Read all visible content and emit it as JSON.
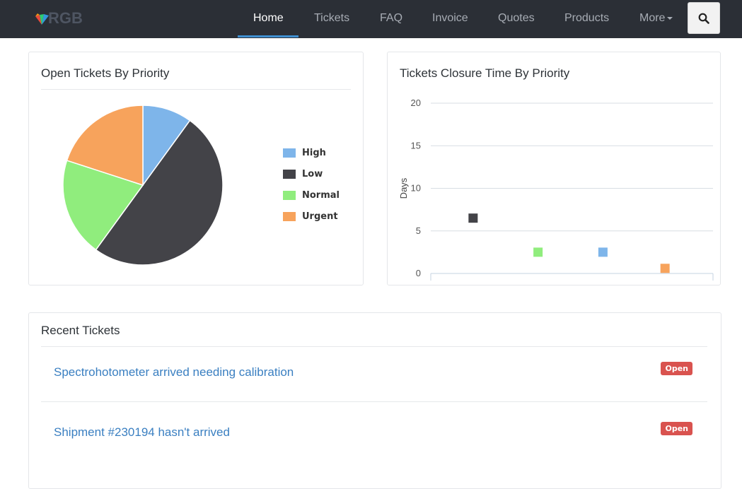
{
  "brand": {
    "name": "RGB"
  },
  "nav": {
    "items": [
      {
        "label": "Home",
        "active": true
      },
      {
        "label": "Tickets"
      },
      {
        "label": "FAQ"
      },
      {
        "label": "Invoice"
      },
      {
        "label": "Quotes"
      },
      {
        "label": "Products"
      },
      {
        "label": "More"
      }
    ],
    "search_icon": "search-icon"
  },
  "open_tickets_panel": {
    "title": "Open Tickets By Priority",
    "legend": [
      {
        "label": "High",
        "color": "#7eb5ea"
      },
      {
        "label": "Low",
        "color": "#434348"
      },
      {
        "label": "Normal",
        "color": "#90ed7d"
      },
      {
        "label": "Urgent",
        "color": "#f7a35c"
      }
    ]
  },
  "closure_panel": {
    "title": "Tickets Closure Time By Priority"
  },
  "recent_tickets": {
    "title": "Recent Tickets",
    "items": [
      {
        "title": "Spectrohotometer arrived needing calibration",
        "status": "Open"
      },
      {
        "title": "Shipment #230194 hasn't arrived",
        "status": "Open"
      }
    ]
  },
  "chart_data": [
    {
      "type": "pie",
      "title": "Open Tickets By Priority",
      "categories": [
        "High",
        "Low",
        "Normal",
        "Urgent"
      ],
      "values": [
        10,
        50,
        20,
        20
      ],
      "colors": [
        "#7eb5ea",
        "#434348",
        "#90ed7d",
        "#f7a35c"
      ],
      "legend": "right"
    },
    {
      "type": "scatter",
      "title": "Tickets Closure Time By Priority",
      "xlabel": "",
      "ylabel": "Days",
      "ylim": [
        0,
        20
      ],
      "yticks": [
        0,
        5,
        10,
        15,
        20
      ],
      "grid": true,
      "series": [
        {
          "name": "Low",
          "color": "#434348",
          "x": 0.15,
          "y": 6.5
        },
        {
          "name": "Normal",
          "color": "#90ed7d",
          "x": 0.38,
          "y": 2.5
        },
        {
          "name": "High",
          "color": "#7eb5ea",
          "x": 0.61,
          "y": 2.5
        },
        {
          "name": "Urgent",
          "color": "#f7a35c",
          "x": 0.83,
          "y": 0.6
        }
      ]
    }
  ]
}
